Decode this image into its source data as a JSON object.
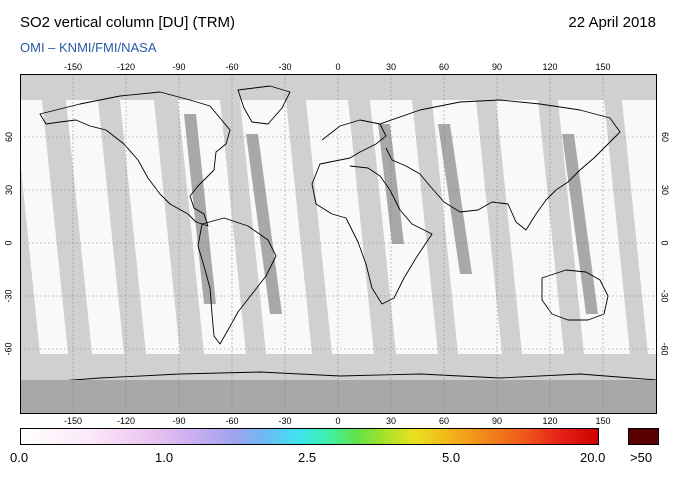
{
  "header": {
    "title": "SO2 vertical column [DU] (TRM)",
    "date": "22 April 2018",
    "subtitle": "OMI  –  KNMI/FMI/NASA"
  },
  "map": {
    "lon_ticks": [
      "-150",
      "-120",
      "-90",
      "-60",
      "-30",
      "0",
      "30",
      "60",
      "90",
      "120",
      "150"
    ],
    "lat_ticks": [
      "60",
      "30",
      "0",
      "-30",
      "-60"
    ],
    "colors": {
      "background": "#d0d0d0",
      "swath_gap": "#a8a8a8",
      "data": "#fbf8fc",
      "coast": "#000000"
    }
  },
  "colorbar": {
    "labels": [
      "0.0",
      "1.0",
      "2.5",
      "5.0",
      "20.0"
    ],
    "max_label": ">50",
    "max_color": "#5a0000"
  }
}
